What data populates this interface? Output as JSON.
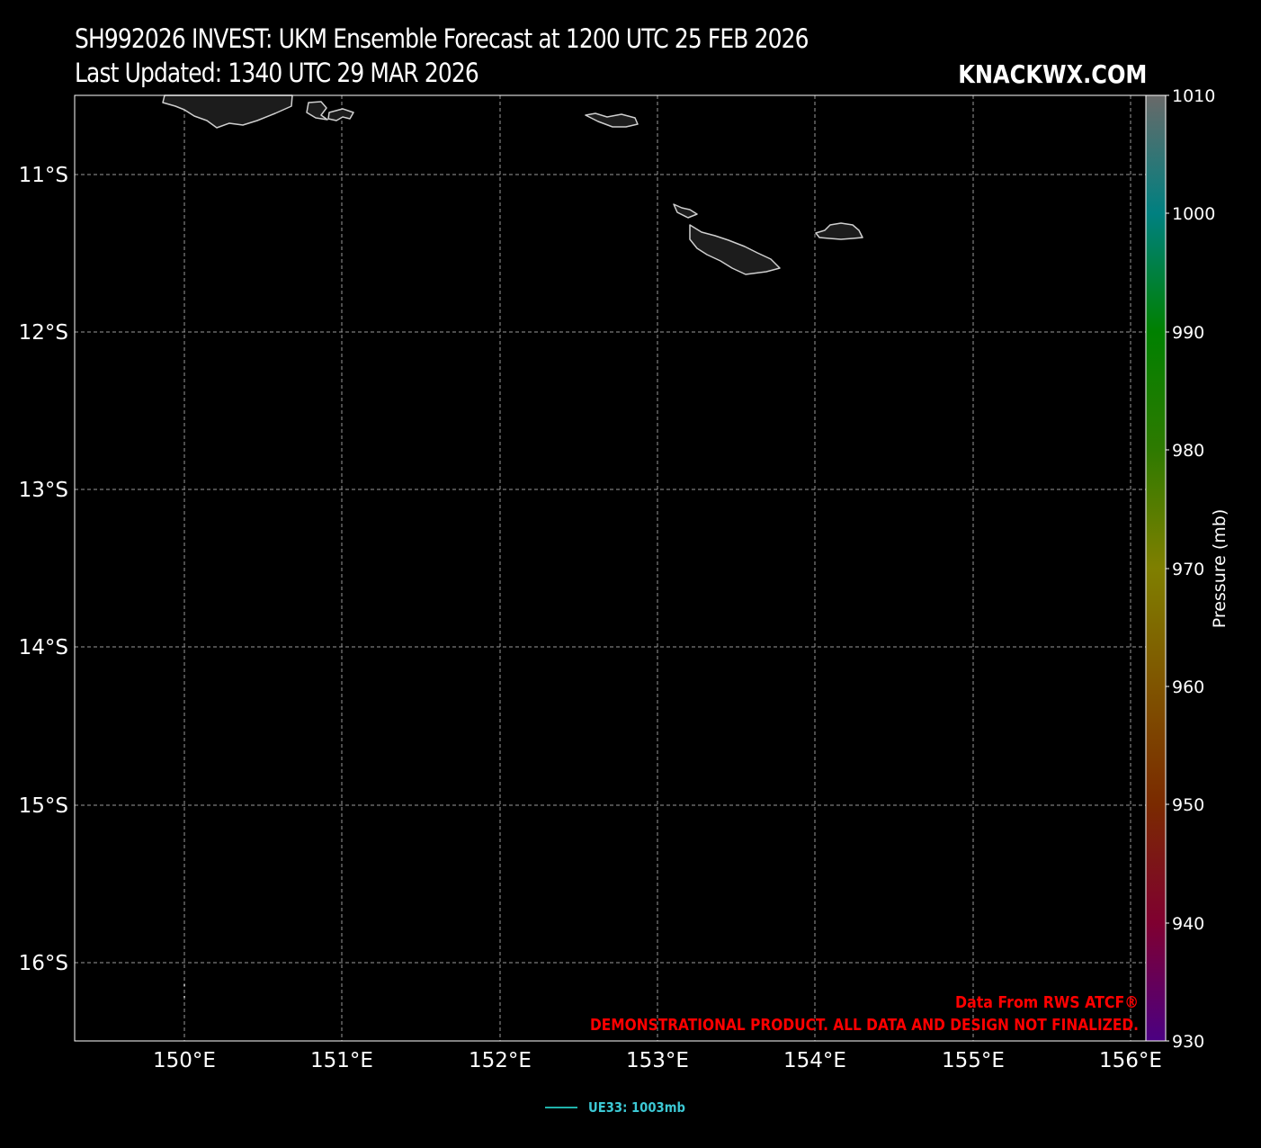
{
  "header": {
    "title": "SH992026 INVEST: UKM Ensemble Forecast at 1200 UTC 25 FEB 2026",
    "subtitle": "Last Updated: 1340 UTC 29 MAR 2026",
    "brand": "KNACKWX.COM"
  },
  "map": {
    "lon_labels": [
      "150°E",
      "151°E",
      "152°E",
      "153°E",
      "154°E",
      "155°E",
      "156°E"
    ],
    "lat_labels": [
      "11°S",
      "12°S",
      "13°S",
      "14°S",
      "15°S",
      "16°S"
    ],
    "background_color": "#000000",
    "land_color": "#1c1c1c",
    "coastline_color": "#cfcfcf",
    "gridlines": true
  },
  "colorbar": {
    "label": "Pressure (mb)",
    "ticks": [
      "1010",
      "1000",
      "990",
      "980",
      "970",
      "960",
      "950",
      "940",
      "930"
    ],
    "colors": [
      "#4b0082",
      "#7f0030",
      "#7a2a00",
      "#7f5400",
      "#7f7f00",
      "#2e7a00",
      "#008000",
      "#008080",
      "#696969"
    ]
  },
  "credits": {
    "line1": "Data From RWS ATCF®",
    "line2": "DEMONSTRATIONAL PRODUCT. ALL DATA AND DESIGN NOT FINALIZED.",
    "color": "#ff0000"
  },
  "legend": {
    "entries": [
      {
        "label": "UE33: 1003mb",
        "color": "#20b2aa"
      }
    ]
  }
}
